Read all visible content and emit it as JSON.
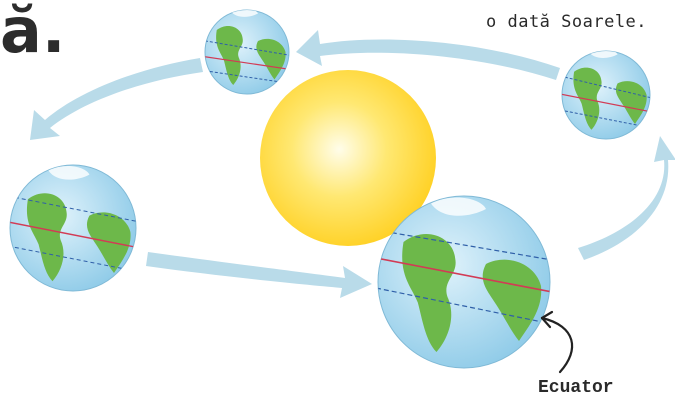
{
  "title_fragment": "ă.",
  "caption": "o dată Soarele.",
  "equator_label": "Ecuator",
  "colors": {
    "orbit_arrow": "#b9dbe9",
    "ocean": "#a9d8ef",
    "land": "#6db84a",
    "sun_core": "#fffce0",
    "sun_edge": "#ffd72e",
    "equator_line": "#d23b55",
    "latitude_line": "#2f5fa8"
  },
  "icons": [
    "sun-icon",
    "earth-globe-icon",
    "orbit-arrow-icon",
    "pointer-arrow-icon"
  ]
}
